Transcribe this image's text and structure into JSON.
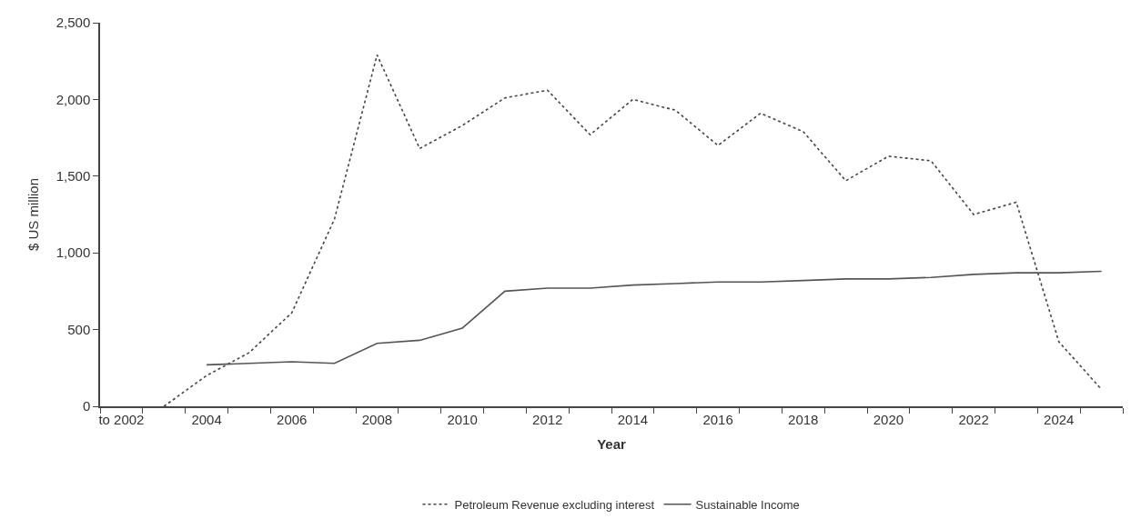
{
  "chart_data": {
    "type": "line",
    "xlabel": "Year",
    "ylabel": "$ US million",
    "categories": [
      "to 2002",
      null,
      "2004",
      null,
      "2006",
      null,
      "2008",
      null,
      "2010",
      null,
      "2012",
      null,
      "2014",
      null,
      "2016",
      null,
      "2018",
      null,
      "2020",
      null,
      "2022",
      null,
      "2024",
      null
    ],
    "series": [
      {
        "name": "Petroleum Revenue excluding interest",
        "color": "#444444",
        "line_style": "dotted",
        "values": [
          null,
          0,
          200,
          350,
          610,
          1220,
          2290,
          1680,
          1830,
          2010,
          2060,
          1770,
          2000,
          1930,
          1700,
          1910,
          1790,
          1470,
          1630,
          1600,
          1250,
          1330,
          420,
          110
        ]
      },
      {
        "name": "Sustainable Income",
        "color": "#555555",
        "line_style": "solid",
        "values": [
          null,
          null,
          270,
          280,
          290,
          280,
          410,
          430,
          510,
          750,
          770,
          770,
          790,
          800,
          810,
          810,
          820,
          830,
          830,
          840,
          860,
          870,
          870,
          880
        ]
      }
    ],
    "ylim": [
      0,
      2500
    ],
    "yticks": [
      0,
      500,
      {
        "value": 1000,
        "label": "1,000"
      },
      {
        "value": 1500,
        "label": "1,500"
      },
      {
        "value": 2000,
        "label": "2,000"
      },
      {
        "value": 2500,
        "label": "2,500"
      }
    ],
    "legend": "bottom",
    "marker": "none"
  }
}
